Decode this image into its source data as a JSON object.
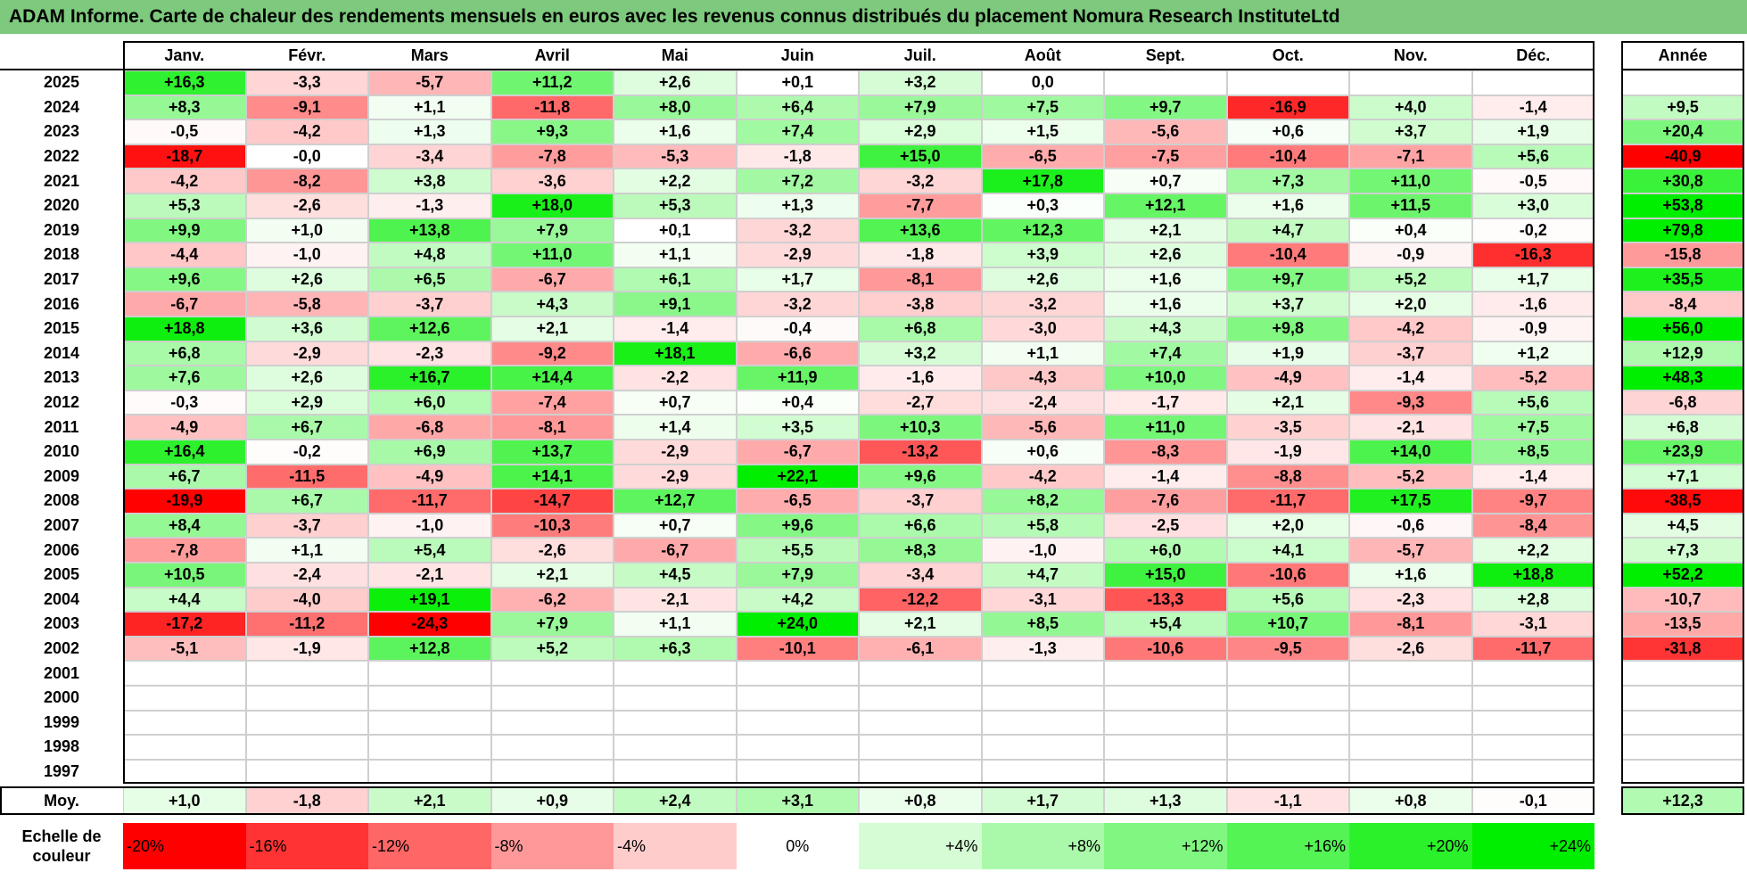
{
  "title": "ADAM Informe. Carte de chaleur des rendements mensuels en euros avec les revenus connus distribués du placement Nomura Research InstituteLtd",
  "colors": {
    "title_bg": "#7dc97d",
    "neg_max": "#ff0000",
    "pos_max": "#00ee00",
    "zero": "#ffffff"
  },
  "chart_data": {
    "type": "heatmap",
    "months": [
      "Janv.",
      "Févr.",
      "Mars",
      "Avril",
      "Mai",
      "Juin",
      "Juil.",
      "Août",
      "Sept.",
      "Oct.",
      "Nov.",
      "Déc."
    ],
    "year_header": "Année",
    "avg_label": "Moy.",
    "scale_title": "Echelle de couleur",
    "rows": [
      {
        "year": "2025",
        "months": [
          "+16,3",
          "-3,3",
          "-5,7",
          "+11,2",
          "+2,6",
          "+0,1",
          "+3,2",
          "0,0",
          "",
          "",
          "",
          ""
        ],
        "annual": ""
      },
      {
        "year": "2024",
        "months": [
          "+8,3",
          "-9,1",
          "+1,1",
          "-11,8",
          "+8,0",
          "+6,4",
          "+7,9",
          "+7,5",
          "+9,7",
          "-16,9",
          "+4,0",
          "-1,4"
        ],
        "annual": "+9,5"
      },
      {
        "year": "2023",
        "months": [
          "-0,5",
          "-4,2",
          "+1,3",
          "+9,3",
          "+1,6",
          "+7,4",
          "+2,9",
          "+1,5",
          "-5,6",
          "+0,6",
          "+3,7",
          "+1,9"
        ],
        "annual": "+20,4"
      },
      {
        "year": "2022",
        "months": [
          "-18,7",
          "-0,0",
          "-3,4",
          "-7,8",
          "-5,3",
          "-1,8",
          "+15,0",
          "-6,5",
          "-7,5",
          "-10,4",
          "-7,1",
          "+5,6"
        ],
        "annual": "-40,9"
      },
      {
        "year": "2021",
        "months": [
          "-4,2",
          "-8,2",
          "+3,8",
          "-3,6",
          "+2,2",
          "+7,2",
          "-3,2",
          "+17,8",
          "+0,7",
          "+7,3",
          "+11,0",
          "-0,5"
        ],
        "annual": "+30,8"
      },
      {
        "year": "2020",
        "months": [
          "+5,3",
          "-2,6",
          "-1,3",
          "+18,0",
          "+5,3",
          "+1,3",
          "-7,7",
          "+0,3",
          "+12,1",
          "+1,6",
          "+11,5",
          "+3,0"
        ],
        "annual": "+53,8"
      },
      {
        "year": "2019",
        "months": [
          "+9,9",
          "+1,0",
          "+13,8",
          "+7,9",
          "+0,1",
          "-3,2",
          "+13,6",
          "+12,3",
          "+2,1",
          "+4,7",
          "+0,4",
          "-0,2"
        ],
        "annual": "+79,8"
      },
      {
        "year": "2018",
        "months": [
          "-4,4",
          "-1,0",
          "+4,8",
          "+11,0",
          "+1,1",
          "-2,9",
          "-1,8",
          "+3,9",
          "+2,6",
          "-10,4",
          "-0,9",
          "-16,3"
        ],
        "annual": "-15,8"
      },
      {
        "year": "2017",
        "months": [
          "+9,6",
          "+2,6",
          "+6,5",
          "-6,7",
          "+6,1",
          "+1,7",
          "-8,1",
          "+2,6",
          "+1,6",
          "+9,7",
          "+5,2",
          "+1,7"
        ],
        "annual": "+35,5"
      },
      {
        "year": "2016",
        "months": [
          "-6,7",
          "-5,8",
          "-3,7",
          "+4,3",
          "+9,1",
          "-3,2",
          "-3,8",
          "-3,2",
          "+1,6",
          "+3,7",
          "+2,0",
          "-1,6"
        ],
        "annual": "-8,4"
      },
      {
        "year": "2015",
        "months": [
          "+18,8",
          "+3,6",
          "+12,6",
          "+2,1",
          "-1,4",
          "-0,4",
          "+6,8",
          "-3,0",
          "+4,3",
          "+9,8",
          "-4,2",
          "-0,9"
        ],
        "annual": "+56,0"
      },
      {
        "year": "2014",
        "months": [
          "+6,8",
          "-2,9",
          "-2,3",
          "-9,2",
          "+18,1",
          "-6,6",
          "+3,2",
          "+1,1",
          "+7,4",
          "+1,9",
          "-3,7",
          "+1,2"
        ],
        "annual": "+12,9"
      },
      {
        "year": "2013",
        "months": [
          "+7,6",
          "+2,6",
          "+16,7",
          "+14,4",
          "-2,2",
          "+11,9",
          "-1,6",
          "-4,3",
          "+10,0",
          "-4,9",
          "-1,4",
          "-5,2"
        ],
        "annual": "+48,3"
      },
      {
        "year": "2012",
        "months": [
          "-0,3",
          "+2,9",
          "+6,0",
          "-7,4",
          "+0,7",
          "+0,4",
          "-2,7",
          "-2,4",
          "-1,7",
          "+2,1",
          "-9,3",
          "+5,6"
        ],
        "annual": "-6,8"
      },
      {
        "year": "2011",
        "months": [
          "-4,9",
          "+6,7",
          "-6,8",
          "-8,1",
          "+1,4",
          "+3,5",
          "+10,3",
          "-5,6",
          "+11,0",
          "-3,5",
          "-2,1",
          "+7,5"
        ],
        "annual": "+6,8"
      },
      {
        "year": "2010",
        "months": [
          "+16,4",
          "-0,2",
          "+6,9",
          "+13,7",
          "-2,9",
          "-6,7",
          "-13,2",
          "+0,6",
          "-8,3",
          "-1,9",
          "+14,0",
          "+8,5"
        ],
        "annual": "+23,9"
      },
      {
        "year": "2009",
        "months": [
          "+6,7",
          "-11,5",
          "-4,9",
          "+14,1",
          "-2,9",
          "+22,1",
          "+9,6",
          "-4,2",
          "-1,4",
          "-8,8",
          "-5,2",
          "-1,4"
        ],
        "annual": "+7,1"
      },
      {
        "year": "2008",
        "months": [
          "-19,9",
          "+6,7",
          "-11,7",
          "-14,7",
          "+12,7",
          "-6,5",
          "-3,7",
          "+8,2",
          "-7,6",
          "-11,7",
          "+17,5",
          "-9,7"
        ],
        "annual": "-38,5"
      },
      {
        "year": "2007",
        "months": [
          "+8,4",
          "-3,7",
          "-1,0",
          "-10,3",
          "+0,7",
          "+9,6",
          "+6,6",
          "+5,8",
          "-2,5",
          "+2,0",
          "-0,6",
          "-8,4"
        ],
        "annual": "+4,5"
      },
      {
        "year": "2006",
        "months": [
          "-7,8",
          "+1,1",
          "+5,4",
          "-2,6",
          "-6,7",
          "+5,5",
          "+8,3",
          "-1,0",
          "+6,0",
          "+4,1",
          "-5,7",
          "+2,2"
        ],
        "annual": "+7,3"
      },
      {
        "year": "2005",
        "months": [
          "+10,5",
          "-2,4",
          "-2,1",
          "+2,1",
          "+4,5",
          "+7,9",
          "-3,4",
          "+4,7",
          "+15,0",
          "-10,6",
          "+1,6",
          "+18,8"
        ],
        "annual": "+52,2"
      },
      {
        "year": "2004",
        "months": [
          "+4,4",
          "-4,0",
          "+19,1",
          "-6,2",
          "-2,1",
          "+4,2",
          "-12,2",
          "-3,1",
          "-13,3",
          "+5,6",
          "-2,3",
          "+2,8"
        ],
        "annual": "-10,7"
      },
      {
        "year": "2003",
        "months": [
          "-17,2",
          "-11,2",
          "-24,3",
          "+7,9",
          "+1,1",
          "+24,0",
          "+2,1",
          "+8,5",
          "+5,4",
          "+10,7",
          "-8,1",
          "-3,1"
        ],
        "annual": "-13,5"
      },
      {
        "year": "2002",
        "months": [
          "-5,1",
          "-1,9",
          "+12,8",
          "+5,2",
          "+6,3",
          "-10,1",
          "-6,1",
          "-1,3",
          "-10,6",
          "-9,5",
          "-2,6",
          "-11,7"
        ],
        "annual": "-31,8"
      },
      {
        "year": "2001",
        "months": [
          "",
          "",
          "",
          "",
          "",
          "",
          "",
          "",
          "",
          "",
          "",
          ""
        ],
        "annual": ""
      },
      {
        "year": "2000",
        "months": [
          "",
          "",
          "",
          "",
          "",
          "",
          "",
          "",
          "",
          "",
          "",
          ""
        ],
        "annual": ""
      },
      {
        "year": "1999",
        "months": [
          "",
          "",
          "",
          "",
          "",
          "",
          "",
          "",
          "",
          "",
          "",
          ""
        ],
        "annual": ""
      },
      {
        "year": "1998",
        "months": [
          "",
          "",
          "",
          "",
          "",
          "",
          "",
          "",
          "",
          "",
          "",
          ""
        ],
        "annual": ""
      },
      {
        "year": "1997",
        "months": [
          "",
          "",
          "",
          "",
          "",
          "",
          "",
          "",
          "",
          "",
          "",
          ""
        ],
        "annual": ""
      }
    ],
    "average": {
      "months": [
        "+1,0",
        "-1,8",
        "+2,1",
        "+0,9",
        "+2,4",
        "+3,1",
        "+0,8",
        "+1,7",
        "+1,3",
        "-1,1",
        "+0,8",
        "-0,1"
      ],
      "annual": "+12,3"
    },
    "scale": [
      "-20%",
      "-16%",
      "-12%",
      "-8%",
      "-4%",
      "0%",
      "+4%",
      "+8%",
      "+12%",
      "+16%",
      "+20%",
      "+24%"
    ],
    "monthly_color_range": [
      -20,
      20
    ],
    "annual_color_range": [
      -40,
      40
    ]
  }
}
